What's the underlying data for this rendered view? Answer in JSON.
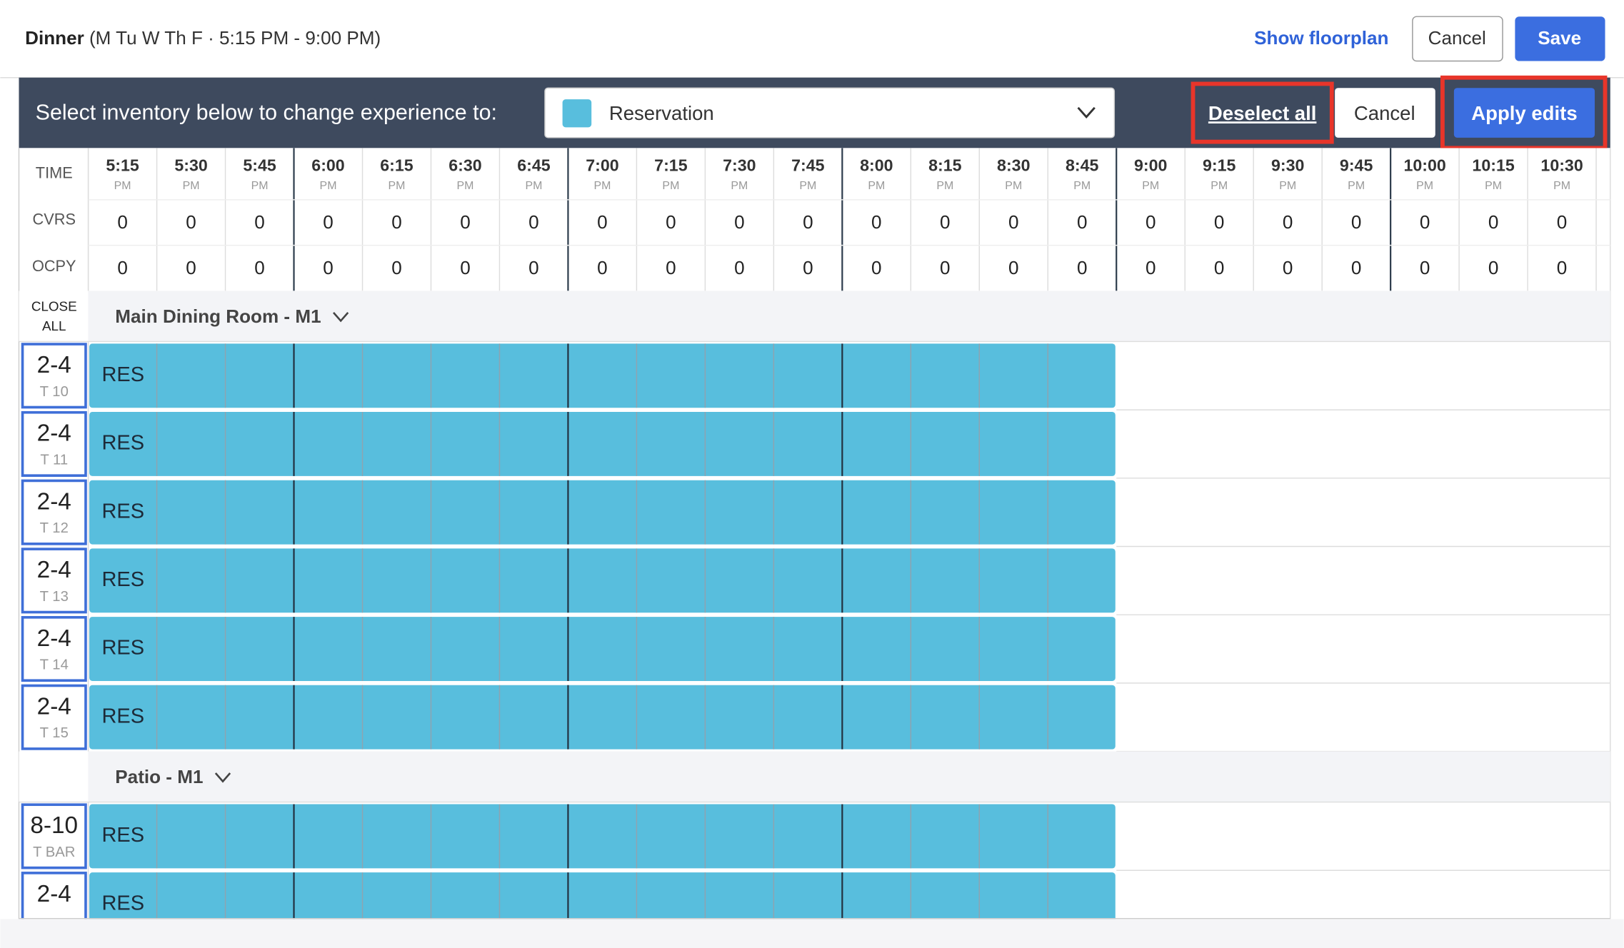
{
  "header": {
    "title": "Dinner",
    "subtitle": "(M Tu W Th F · 5:15 PM - 9:00 PM)",
    "link": "Show floorplan",
    "cancel": "Cancel",
    "save": "Save"
  },
  "toolbar": {
    "label": "Select inventory below to change experience to:",
    "dropdown": "Reservation",
    "deselect": "Deselect all",
    "cancel": "Cancel",
    "apply": "Apply edits"
  },
  "grid": {
    "row_labels": [
      "TIME",
      "CVRS",
      "OCPY"
    ],
    "close_all": [
      "CLOSE",
      "ALL"
    ],
    "times": [
      {
        "time": "5:15",
        "period": "PM"
      },
      {
        "time": "5:30",
        "period": "PM"
      },
      {
        "time": "5:45",
        "period": "PM"
      },
      {
        "time": "6:00",
        "period": "PM"
      },
      {
        "time": "6:15",
        "period": "PM"
      },
      {
        "time": "6:30",
        "period": "PM"
      },
      {
        "time": "6:45",
        "period": "PM"
      },
      {
        "time": "7:00",
        "period": "PM"
      },
      {
        "time": "7:15",
        "period": "PM"
      },
      {
        "time": "7:30",
        "period": "PM"
      },
      {
        "time": "7:45",
        "period": "PM"
      },
      {
        "time": "8:00",
        "period": "PM"
      },
      {
        "time": "8:15",
        "period": "PM"
      },
      {
        "time": "8:30",
        "period": "PM"
      },
      {
        "time": "8:45",
        "period": "PM"
      },
      {
        "time": "9:00",
        "period": "PM"
      },
      {
        "time": "9:15",
        "period": "PM"
      },
      {
        "time": "9:30",
        "period": "PM"
      },
      {
        "time": "9:45",
        "period": "PM"
      },
      {
        "time": "10:00",
        "period": "PM"
      },
      {
        "time": "10:15",
        "period": "PM"
      },
      {
        "time": "10:30",
        "period": "PM"
      }
    ],
    "covers": [
      0,
      0,
      0,
      0,
      0,
      0,
      0,
      0,
      0,
      0,
      0,
      0,
      0,
      0,
      0,
      0,
      0,
      0,
      0,
      0,
      0,
      0
    ],
    "occupancy": [
      0,
      0,
      0,
      0,
      0,
      0,
      0,
      0,
      0,
      0,
      0,
      0,
      0,
      0,
      0,
      0,
      0,
      0,
      0,
      0,
      0,
      0
    ],
    "sections": [
      {
        "name": "Main Dining Room - M1",
        "tables": [
          {
            "size": "2-4",
            "name": "T 10",
            "slot": "RES"
          },
          {
            "size": "2-4",
            "name": "T 11",
            "slot": "RES"
          },
          {
            "size": "2-4",
            "name": "T 12",
            "slot": "RES"
          },
          {
            "size": "2-4",
            "name": "T 13",
            "slot": "RES"
          },
          {
            "size": "2-4",
            "name": "T 14",
            "slot": "RES"
          },
          {
            "size": "2-4",
            "name": "T 15",
            "slot": "RES"
          }
        ]
      },
      {
        "name": "Patio - M1",
        "tables": [
          {
            "size": "8-10",
            "name": "T BAR",
            "slot": "RES"
          },
          {
            "size": "2-4",
            "slot": "RES"
          }
        ]
      }
    ]
  }
}
